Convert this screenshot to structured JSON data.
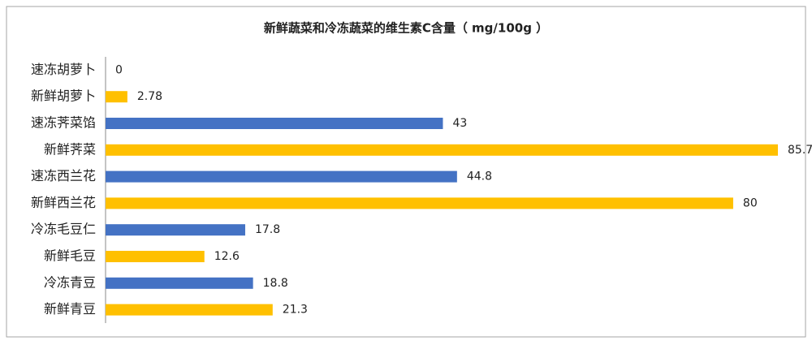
{
  "chart_data": {
    "type": "hbar",
    "title": "新鲜蔬菜和冷冻蔬菜的维生素C含量（ mg/100g ）",
    "categories": [
      "速冻胡萝卜",
      "新鲜胡萝卜",
      "速冻荠菜馅",
      "新鲜荠菜",
      "速冻西兰花",
      "新鲜西兰花",
      "冷冻毛豆仁",
      "新鲜毛豆",
      "冷冻青豆",
      "新鲜青豆"
    ],
    "values": [
      0,
      2.78,
      43,
      85.7,
      44.8,
      80,
      17.8,
      12.6,
      18.8,
      21.3
    ],
    "colors": [
      "#4472c4",
      "#ffc000",
      "#4472c4",
      "#ffc000",
      "#4472c4",
      "#ffc000",
      "#4472c4",
      "#ffc000",
      "#4472c4",
      "#ffc000"
    ]
  }
}
